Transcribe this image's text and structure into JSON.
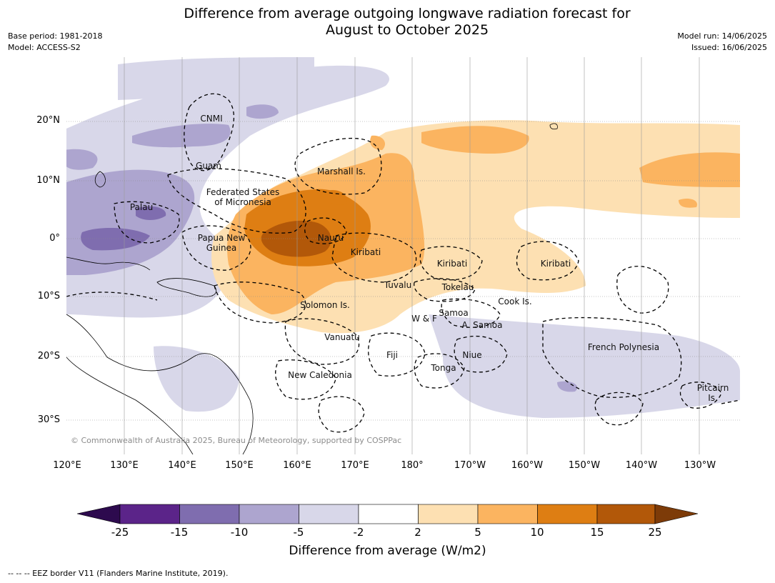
{
  "title": {
    "line1": "Difference from average outgoing longwave radiation forecast for",
    "line2": "August to October 2025"
  },
  "meta": {
    "base_period": "Base period: 1981-2018",
    "model": "Model: ACCESS-S2",
    "model_run": "Model run: 14/06/2025",
    "issued": "Issued: 16/06/2025"
  },
  "map": {
    "lon_labels": [
      "120°E",
      "130°E",
      "140°E",
      "150°E",
      "160°E",
      "170°E",
      "180°",
      "170°W",
      "160°W",
      "150°W",
      "140°W",
      "130°W"
    ],
    "lat_labels": [
      "20°N",
      "10°N",
      "0°",
      "10°S",
      "20°S",
      "30°S"
    ],
    "regions": {
      "cnmi": "CNMI",
      "guam": "Guam",
      "marshall": "Marshall Is.",
      "fsm_1": "Federated States",
      "fsm_2": "of Micronesia",
      "palau": "Palau",
      "png_1": "Papua New",
      "png_2": "Guinea",
      "nauru": "Nauru",
      "kiribati_w": "Kiribati",
      "kiribati_c": "Kiribati",
      "kiribati_e": "Kiribati",
      "tuvalu": "Tuvalu",
      "tokelau": "Tokelau",
      "solomon": "Solomon Is.",
      "samoa": "Samoa",
      "wf": "W & F",
      "asamoa": "A. Samoa",
      "cook": "Cook Is.",
      "vanuatu": "Vanuatu",
      "fiji": "Fiji",
      "niue": "Niue",
      "tonga": "Tonga",
      "frpoly": "French Polynesia",
      "newcal": "New Caledonia",
      "pitcairn_1": "Pitcairn",
      "pitcairn_2": "Is."
    },
    "copyright": "© Commonwealth of Australia 2025, Bureau of Meteorology, supported by COSPPac"
  },
  "colorbar": {
    "ticks": [
      "-25",
      "-15",
      "-10",
      "-5",
      "-2",
      "2",
      "5",
      "10",
      "15",
      "25"
    ],
    "colors": [
      "#2d0a4e",
      "#5b2489",
      "#7f6daf",
      "#ada5cf",
      "#d8d7e9",
      "#ffffff",
      "#fde0b2",
      "#fbb460",
      "#de7e13",
      "#b25809",
      "#7d3b08"
    ],
    "title": "Difference from average (W/m2)"
  },
  "footer": "--  --  -- EEZ border V11 (Flanders Marine Institute, 2019)."
}
